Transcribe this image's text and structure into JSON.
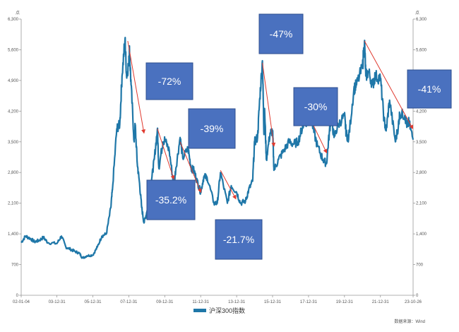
{
  "chart_data": {
    "type": "line",
    "unit_left": "点",
    "unit_right": "点",
    "y_ticks": [
      "0",
      "700",
      "1,400",
      "2,100",
      "2,800",
      "3,500",
      "4,200",
      "4,900",
      "5,600",
      "6,300"
    ],
    "ylim": [
      0,
      6300
    ],
    "x_ticks": [
      "02-01-04",
      "03-12-31",
      "05-12-31",
      "07-12-31",
      "09-12-31",
      "11-12-31",
      "13-12-31",
      "15-12-31",
      "17-12-31",
      "19-12-31",
      "21-12-31",
      "23-10-26"
    ],
    "xlim": [
      "2002-01-04",
      "2023-10-26"
    ],
    "series": [
      {
        "name": "沪深300指数",
        "color": "#1f77a8",
        "points": [
          [
            "2002-01-04",
            1200
          ],
          [
            "2002-04-01",
            1350
          ],
          [
            "2002-07-01",
            1300
          ],
          [
            "2002-10-01",
            1220
          ],
          [
            "2003-01-01",
            1250
          ],
          [
            "2003-04-01",
            1320
          ],
          [
            "2003-07-01",
            1200
          ],
          [
            "2003-12-31",
            1180
          ],
          [
            "2004-04-01",
            1350
          ],
          [
            "2004-07-01",
            1100
          ],
          [
            "2004-10-01",
            1050
          ],
          [
            "2004-12-31",
            1000
          ],
          [
            "2005-04-01",
            960
          ],
          [
            "2005-06-01",
            850
          ],
          [
            "2005-09-01",
            900
          ],
          [
            "2005-12-31",
            920
          ],
          [
            "2006-04-01",
            1100
          ],
          [
            "2006-07-01",
            1350
          ],
          [
            "2006-10-01",
            1400
          ],
          [
            "2006-12-31",
            2000
          ],
          [
            "2007-02-01",
            2400
          ],
          [
            "2007-05-01",
            3800
          ],
          [
            "2007-07-01",
            3900
          ],
          [
            "2007-08-15",
            5000
          ],
          [
            "2007-10-16",
            5850
          ],
          [
            "2007-11-15",
            5000
          ],
          [
            "2007-12-31",
            5300
          ],
          [
            "2008-01-14",
            5600
          ],
          [
            "2008-02-15",
            4800
          ],
          [
            "2008-04-18",
            3500
          ],
          [
            "2008-05-09",
            3900
          ],
          [
            "2008-06-20",
            3000
          ],
          [
            "2008-08-01",
            2600
          ],
          [
            "2008-09-18",
            2000
          ],
          [
            "2008-11-04",
            1650
          ],
          [
            "2008-12-31",
            1900
          ],
          [
            "2009-02-17",
            2300
          ],
          [
            "2009-04-15",
            2700
          ],
          [
            "2009-06-01",
            3100
          ],
          [
            "2009-08-04",
            3800
          ],
          [
            "2009-09-01",
            2900
          ],
          [
            "2009-11-24",
            3500
          ],
          [
            "2009-12-31",
            3550
          ],
          [
            "2010-04-01",
            3300
          ],
          [
            "2010-07-02",
            2500
          ],
          [
            "2010-08-15",
            2900
          ],
          [
            "2010-11-08",
            3600
          ],
          [
            "2010-12-31",
            3130
          ],
          [
            "2011-04-18",
            3350
          ],
          [
            "2011-06-20",
            2900
          ],
          [
            "2011-08-15",
            2850
          ],
          [
            "2011-10-21",
            2600
          ],
          [
            "2011-12-31",
            2350
          ],
          [
            "2012-03-02",
            2700
          ],
          [
            "2012-05-07",
            2700
          ],
          [
            "2012-09-26",
            2100
          ],
          [
            "2012-12-03",
            2100
          ],
          [
            "2013-02-05",
            2800
          ],
          [
            "2013-06-25",
            2100
          ],
          [
            "2013-09-12",
            2500
          ],
          [
            "2013-12-31",
            2350
          ],
          [
            "2014-03-20",
            2100
          ],
          [
            "2014-06-30",
            2150
          ],
          [
            "2014-09-01",
            2400
          ],
          [
            "2014-11-20",
            2600
          ],
          [
            "2014-12-31",
            3500
          ],
          [
            "2015-03-01",
            3600
          ],
          [
            "2015-04-15",
            4500
          ],
          [
            "2015-06-08",
            5350
          ],
          [
            "2015-07-08",
            3700
          ],
          [
            "2015-07-24",
            4200
          ],
          [
            "2015-08-26",
            3100
          ],
          [
            "2015-11-10",
            3700
          ],
          [
            "2015-12-31",
            3750
          ],
          [
            "2016-01-28",
            2850
          ],
          [
            "2016-05-01",
            3100
          ],
          [
            "2016-08-15",
            3300
          ],
          [
            "2016-11-30",
            3500
          ],
          [
            "2017-03-01",
            3450
          ],
          [
            "2017-06-01",
            3500
          ],
          [
            "2017-09-01",
            3850
          ],
          [
            "2017-12-31",
            4030
          ],
          [
            "2018-01-24",
            4400
          ],
          [
            "2018-04-01",
            3800
          ],
          [
            "2018-07-01",
            3400
          ],
          [
            "2018-10-18",
            3100
          ],
          [
            "2018-12-31",
            3000
          ],
          [
            "2019-02-25",
            3700
          ],
          [
            "2019-04-08",
            4100
          ],
          [
            "2019-06-01",
            3600
          ],
          [
            "2019-09-01",
            3900
          ],
          [
            "2019-12-31",
            4100
          ],
          [
            "2020-02-03",
            3700
          ],
          [
            "2020-03-23",
            3550
          ],
          [
            "2020-07-09",
            4700
          ],
          [
            "2020-09-01",
            4800
          ],
          [
            "2020-12-31",
            5200
          ],
          [
            "2021-02-10",
            5800
          ],
          [
            "2021-03-09",
            5000
          ],
          [
            "2021-05-01",
            5100
          ],
          [
            "2021-07-28",
            4800
          ],
          [
            "2021-09-15",
            5000
          ],
          [
            "2021-12-31",
            4950
          ],
          [
            "2022-03-15",
            4000
          ],
          [
            "2022-04-26",
            3750
          ],
          [
            "2022-07-05",
            4450
          ],
          [
            "2022-10-31",
            3500
          ],
          [
            "2022-12-31",
            3870
          ],
          [
            "2023-01-28",
            4150
          ],
          [
            "2023-05-09",
            4100
          ],
          [
            "2023-07-01",
            3850
          ],
          [
            "2023-08-01",
            3950
          ],
          [
            "2023-10-26",
            3550
          ]
        ]
      }
    ],
    "annotations": [
      {
        "text": "-72%",
        "box_color": "#4a71bf"
      },
      {
        "text": "-35.2%",
        "box_color": "#4a71bf"
      },
      {
        "text": "-39%",
        "box_color": "#4a71bf"
      },
      {
        "text": "-21.7%",
        "box_color": "#4a71bf"
      },
      {
        "text": "-47%",
        "box_color": "#4a71bf"
      },
      {
        "text": "-30%",
        "box_color": "#4a71bf"
      },
      {
        "text": "-41%",
        "box_color": "#4a71bf"
      }
    ],
    "arrow_color": "#e03a2f",
    "grid": false,
    "legend": {
      "position": "bottom-center",
      "label": "沪深300指数"
    },
    "source": "数据来源：Wind"
  }
}
